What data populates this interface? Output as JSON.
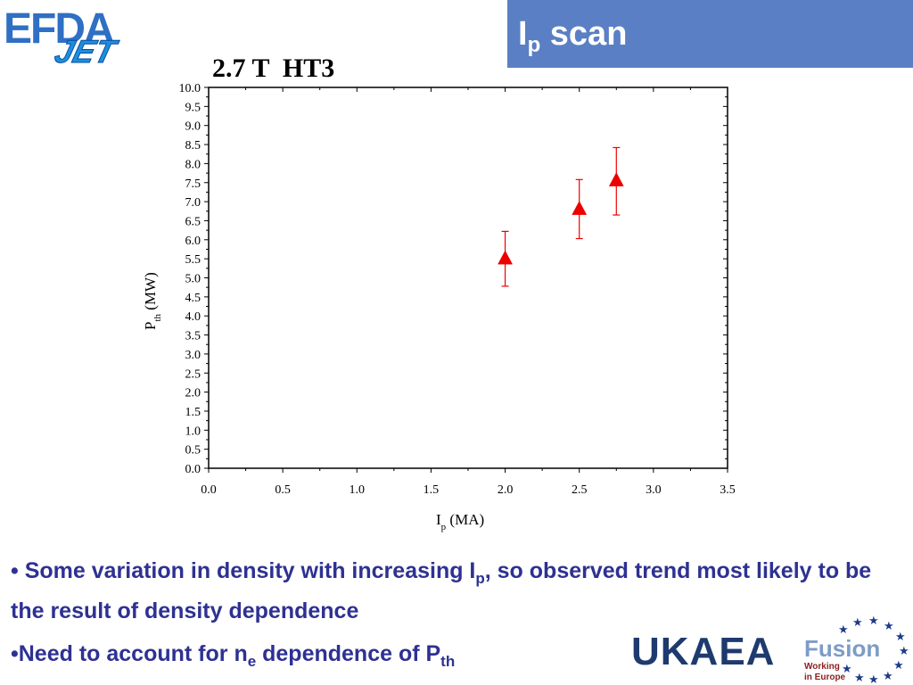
{
  "slide": {
    "title_main": "I",
    "title_sub": "p",
    "title_rest": " scan"
  },
  "logos": {
    "efda_text": "EFDA",
    "jet_text": "JET",
    "ukaea_text": "UKAEA",
    "fusion_text": "Fusion",
    "fusion_sub1": "Working",
    "fusion_sub2": "in Europe"
  },
  "chart_data": {
    "type": "scatter",
    "title": "2.7 T  HT3",
    "xlabel_main": "I",
    "xlabel_sub": "p",
    "xlabel_rest": " (MA)",
    "ylabel_main": "P",
    "ylabel_sub": "th",
    "ylabel_rest": " (MW)",
    "xlim": [
      0,
      3.5
    ],
    "ylim": [
      0,
      10
    ],
    "xticks": [
      "0.0",
      "0.5",
      "1.0",
      "1.5",
      "2.0",
      "2.5",
      "3.0",
      "3.5"
    ],
    "yticks": [
      "0.0",
      "0.5",
      "1.0",
      "1.5",
      "2.0",
      "2.5",
      "3.0",
      "3.5",
      "4.0",
      "4.5",
      "5.0",
      "5.5",
      "6.0",
      "6.5",
      "7.0",
      "7.5",
      "8.0",
      "8.5",
      "9.0",
      "9.5",
      "10.0"
    ],
    "grid": false,
    "marker_color": "#ee0000",
    "series": [
      {
        "points": [
          {
            "x": 2.0,
            "y": 5.5,
            "ylow": 4.78,
            "yhigh": 6.22
          },
          {
            "x": 2.5,
            "y": 6.8,
            "ylow": 6.03,
            "yhigh": 7.58
          },
          {
            "x": 2.75,
            "y": 7.55,
            "ylow": 6.65,
            "yhigh": 8.42
          }
        ]
      }
    ]
  },
  "bullets": {
    "b1_a": "• Some variation in density with increasing I",
    "b1_sub": "p",
    "b1_b": ", so observed trend most likely to be the result of density dependence",
    "b2_a": "•Need to account for n",
    "b2_sub": "e",
    "b2_b": " dependence of P",
    "b2_sub2": "th"
  },
  "colors": {
    "title_bg": "#5a7fc4",
    "bullet_text": "#2e3192",
    "efda_blue": "#2f6fc4",
    "ukaea_navy": "#1e3a6e"
  }
}
